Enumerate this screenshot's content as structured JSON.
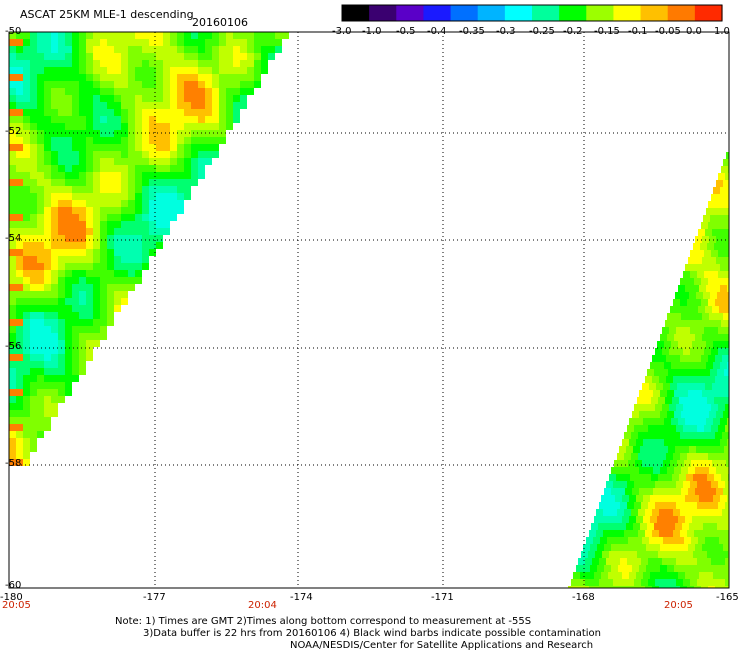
{
  "header": {
    "title": "ASCAT 25KM MLE-1 descending",
    "date": "20160106"
  },
  "colorbar": {
    "labels": [
      "-3.0",
      "-1.0",
      "-0.5",
      "-0.4",
      "-0.35",
      "-0.3",
      "-0.25",
      "-0.2",
      "-0.15",
      "-0.1",
      "-0.05",
      "0.0",
      "1.0"
    ],
    "colors": [
      "#000000",
      "#3a0070",
      "#5a00c8",
      "#1a1aff",
      "#0070ff",
      "#00b4ff",
      "#00ffff",
      "#00ff9c",
      "#00ff00",
      "#9cff00",
      "#ffff00",
      "#ffc000",
      "#ff7a00",
      "#ff2a00"
    ]
  },
  "map": {
    "lat_labels": [
      "-50",
      "-52",
      "-54",
      "-56",
      "-58",
      "-60"
    ],
    "lon_labels": [
      "-180",
      "-177",
      "-174",
      "-171",
      "-168",
      "-165"
    ],
    "lat_range": [
      -60,
      -50
    ],
    "lon_range": [
      -180,
      -165
    ],
    "grid": true,
    "grid_style": "dotted"
  },
  "times": {
    "left": "20:05",
    "middle": "20:04",
    "right": "20:05"
  },
  "notes": {
    "line1": "Note: 1) Times are GMT 2)Times along bottom correspond to measurement at -55S",
    "line2": "3)Data buffer is 22 hrs from 20160106 4) Black wind barbs indicate possible contamination",
    "line3": "NOAA/NESDIS/Center for Satellite Applications and Research"
  }
}
